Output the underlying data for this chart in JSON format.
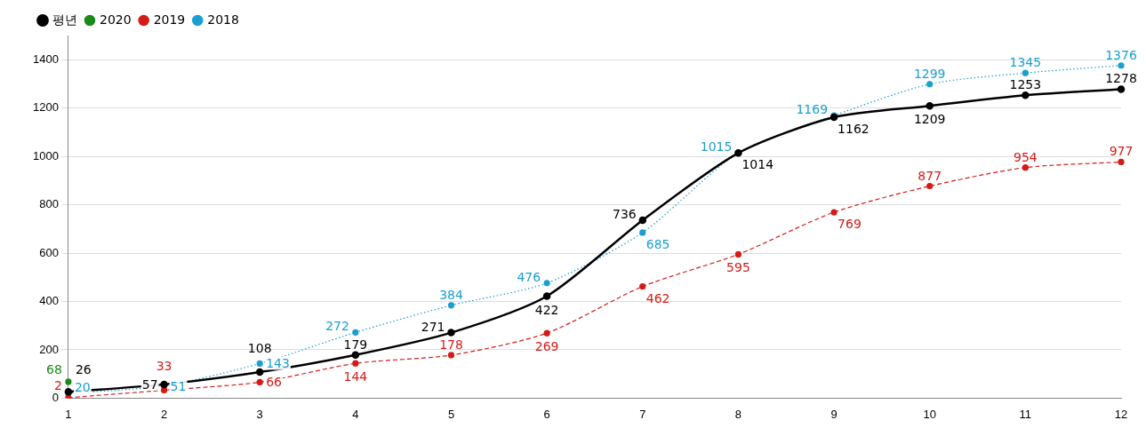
{
  "chart_data": {
    "type": "line",
    "categories": [
      "1",
      "2",
      "3",
      "4",
      "5",
      "6",
      "7",
      "8",
      "9",
      "10",
      "11",
      "12"
    ],
    "series": [
      {
        "name": "평년",
        "color": "#000000",
        "line_style": "solid",
        "values": [
          26,
          57,
          108,
          179,
          271,
          422,
          736,
          1014,
          1162,
          1209,
          1253,
          1278
        ]
      },
      {
        "name": "2020",
        "color": "#1a8a1a",
        "line_style": "solid",
        "values": [
          68,
          null,
          null,
          null,
          null,
          null,
          null,
          null,
          null,
          null,
          null,
          null
        ]
      },
      {
        "name": "2019",
        "color": "#d41c17",
        "line_style": "dashed",
        "values": [
          2,
          33,
          66,
          144,
          178,
          269,
          462,
          595,
          769,
          877,
          954,
          977
        ]
      },
      {
        "name": "2018",
        "color": "#1a9fd0",
        "line_style": "dotted",
        "values": [
          20,
          51,
          143,
          272,
          384,
          476,
          685,
          1015,
          1169,
          1299,
          1345,
          1376
        ]
      }
    ],
    "ylim": [
      0,
      1500
    ],
    "yticks": [
      0,
      200,
      400,
      600,
      800,
      1000,
      1200,
      1400
    ],
    "grid": "y",
    "legend": "top left",
    "marker": "circle",
    "data_labels": true
  }
}
